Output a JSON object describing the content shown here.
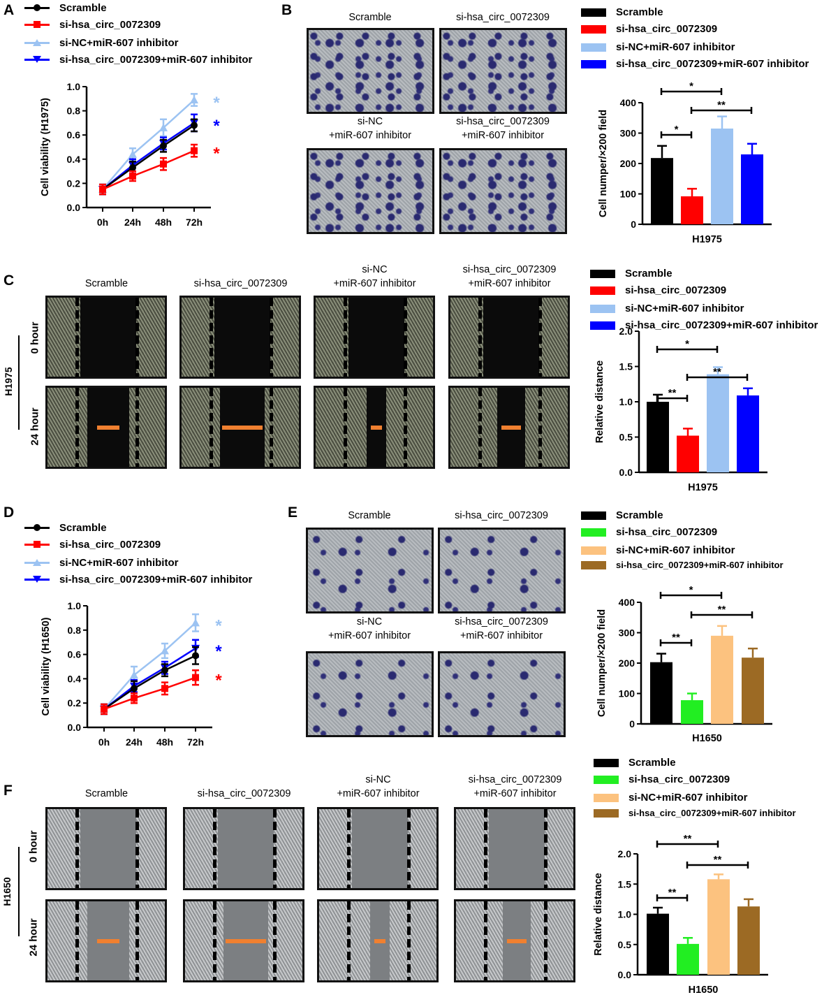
{
  "panel_labels": {
    "A": "A",
    "B": "B",
    "C": "C",
    "D": "D",
    "E": "E",
    "F": "F"
  },
  "colors": {
    "scramble": "#000000",
    "si_red": "#ff0000",
    "nc_lightblue": "#9cc3f2",
    "si_inh_blue": "#0000ff",
    "si_green": "#22ee22",
    "nc_peach": "#fcc27f",
    "si_inh_brown": "#9c6a24",
    "wound_bar": "#f08030"
  },
  "legend_lines": [
    "Scramble",
    "si-hsa_circ_0072309",
    "si-NC+miR-607 inhibitor",
    "si-hsa_circ_0072309+miR-607 inhibitor"
  ],
  "image_headers": {
    "scramble": "Scramble",
    "si": "si-hsa_circ_0072309",
    "nc_1": "si-NC",
    "nc_2": "+miR-607  inhibitor",
    "si_inh_1": "si-hsa_circ_0072309",
    "si_inh_2": "+miR-607  inhibitor"
  },
  "row_labels": {
    "h0": "0 hour",
    "h24": "24 hour",
    "cell_h1975": "H1975",
    "cell_h1650": "H1650"
  },
  "chart_data": [
    {
      "panel": "A",
      "type": "line",
      "ylabel": "Cell viability (H1975)",
      "ylim": [
        0,
        1.0
      ],
      "yticks": [
        "0.0",
        "0.2",
        "0.4",
        "0.6",
        "0.8",
        "1.0"
      ],
      "categories": [
        "0h",
        "24h",
        "48h",
        "72h"
      ],
      "significance": [
        "*",
        "*",
        "*"
      ],
      "series": [
        {
          "name": "Scramble",
          "color": "#000000",
          "marker": "circle",
          "values": [
            0.15,
            0.33,
            0.51,
            0.68
          ],
          "errors": [
            0.04,
            0.05,
            0.05,
            0.05
          ]
        },
        {
          "name": "si-hsa_circ_0072309",
          "color": "#ff0000",
          "marker": "square",
          "values": [
            0.15,
            0.26,
            0.36,
            0.47
          ],
          "errors": [
            0.04,
            0.04,
            0.05,
            0.05
          ]
        },
        {
          "name": "si-NC+miR-607 inhibitor",
          "color": "#9cc3f2",
          "marker": "triangle-up",
          "values": [
            0.15,
            0.44,
            0.66,
            0.89
          ],
          "errors": [
            0.04,
            0.05,
            0.07,
            0.05
          ]
        },
        {
          "name": "si-hsa_circ_0072309+miR-607 inhibitor",
          "color": "#0000ff",
          "marker": "triangle-down",
          "values": [
            0.15,
            0.35,
            0.53,
            0.7
          ],
          "errors": [
            0.04,
            0.05,
            0.05,
            0.07
          ]
        }
      ]
    },
    {
      "panel": "B",
      "type": "bar",
      "ylabel": "Cell numper/×200 field",
      "xlabel": "H1975",
      "ylim": [
        0,
        400
      ],
      "yticks": [
        "0",
        "100",
        "200",
        "300",
        "400"
      ],
      "categories": [
        "Scramble",
        "si-hsa_circ_0072309",
        "si-NC+miR-607 inhibitor",
        "si-hsa_circ_0072309+miR-607 inhibitor"
      ],
      "colors": [
        "#000000",
        "#ff0000",
        "#9cc3f2",
        "#0000ff"
      ],
      "values": [
        218,
        92,
        315,
        230
      ],
      "errors": [
        40,
        25,
        40,
        35
      ],
      "brackets": [
        {
          "from": 0,
          "to": 2,
          "label": "*"
        },
        {
          "from": 1,
          "to": 3,
          "label": "**"
        },
        {
          "from": 0,
          "to": 1,
          "label": "*"
        }
      ]
    },
    {
      "panel": "C",
      "type": "bar",
      "ylabel": "Relative distance",
      "xlabel": "H1975",
      "ylim": [
        0,
        2.0
      ],
      "yticks": [
        "0.0",
        "0.5",
        "1.0",
        "1.5",
        "2.0"
      ],
      "categories": [
        "Scramble",
        "si-hsa_circ_0072309",
        "si-NC+miR-607 inhibitor",
        "si-hsa_circ_0072309+miR-607 inhibitor"
      ],
      "colors": [
        "#000000",
        "#ff0000",
        "#9cc3f2",
        "#0000ff"
      ],
      "values": [
        1.0,
        0.52,
        1.39,
        1.09
      ],
      "errors": [
        0.1,
        0.1,
        0.1,
        0.1
      ],
      "brackets": [
        {
          "from": 0,
          "to": 2,
          "label": "*"
        },
        {
          "from": 1,
          "to": 3,
          "label": "**"
        },
        {
          "from": 0,
          "to": 1,
          "label": "**"
        }
      ]
    },
    {
      "panel": "D",
      "type": "line",
      "ylabel": "Cell viability (H1650)",
      "ylim": [
        0,
        1.0
      ],
      "yticks": [
        "0.0",
        "0.2",
        "0.4",
        "0.6",
        "0.8",
        "1.0"
      ],
      "categories": [
        "0h",
        "24h",
        "48h",
        "72h"
      ],
      "significance": [
        "*",
        "*",
        "*"
      ],
      "series": [
        {
          "name": "Scramble",
          "color": "#000000",
          "marker": "circle",
          "values": [
            0.15,
            0.32,
            0.47,
            0.59
          ],
          "errors": [
            0.04,
            0.06,
            0.05,
            0.07
          ]
        },
        {
          "name": "si-hsa_circ_0072309",
          "color": "#ff0000",
          "marker": "square",
          "values": [
            0.15,
            0.24,
            0.32,
            0.41
          ],
          "errors": [
            0.04,
            0.04,
            0.05,
            0.06
          ]
        },
        {
          "name": "si-NC+miR-607 inhibitor",
          "color": "#9cc3f2",
          "marker": "triangle-up",
          "values": [
            0.15,
            0.43,
            0.63,
            0.86
          ],
          "errors": [
            0.04,
            0.07,
            0.06,
            0.07
          ]
        },
        {
          "name": "si-hsa_circ_0072309+miR-607 inhibitor",
          "color": "#0000ff",
          "marker": "triangle-down",
          "values": [
            0.15,
            0.34,
            0.49,
            0.65
          ],
          "errors": [
            0.04,
            0.05,
            0.05,
            0.07
          ]
        }
      ]
    },
    {
      "panel": "E",
      "type": "bar",
      "ylabel": "Cell numper/×200 field",
      "xlabel": "H1650",
      "ylim": [
        0,
        400
      ],
      "yticks": [
        "0",
        "100",
        "200",
        "300",
        "400"
      ],
      "categories": [
        "Scramble",
        "si-hsa_circ_0072309",
        "si-NC+miR-607 inhibitor",
        "si-hsa_circ_0072309+miR-607 inhibitor"
      ],
      "colors": [
        "#000000",
        "#22ee22",
        "#fcc27f",
        "#9c6a24"
      ],
      "values": [
        203,
        78,
        290,
        218
      ],
      "errors": [
        28,
        22,
        32,
        30
      ],
      "brackets": [
        {
          "from": 0,
          "to": 2,
          "label": "*"
        },
        {
          "from": 1,
          "to": 3,
          "label": "**"
        },
        {
          "from": 0,
          "to": 1,
          "label": "**"
        }
      ]
    },
    {
      "panel": "F",
      "type": "bar",
      "ylabel": "Relative distance",
      "xlabel": "H1650",
      "ylim": [
        0,
        2.0
      ],
      "yticks": [
        "0.0",
        "0.5",
        "1.0",
        "1.5",
        "2.0"
      ],
      "categories": [
        "Scramble",
        "si-hsa_circ_0072309",
        "si-NC+miR-607 inhibitor",
        "si-hsa_circ_0072309+miR-607 inhibitor"
      ],
      "colors": [
        "#000000",
        "#22ee22",
        "#fcc27f",
        "#9c6a24"
      ],
      "values": [
        1.01,
        0.51,
        1.58,
        1.13
      ],
      "errors": [
        0.1,
        0.1,
        0.08,
        0.12
      ],
      "brackets": [
        {
          "from": 0,
          "to": 2,
          "label": "**"
        },
        {
          "from": 1,
          "to": 3,
          "label": "**"
        },
        {
          "from": 0,
          "to": 1,
          "label": "**"
        }
      ]
    }
  ]
}
